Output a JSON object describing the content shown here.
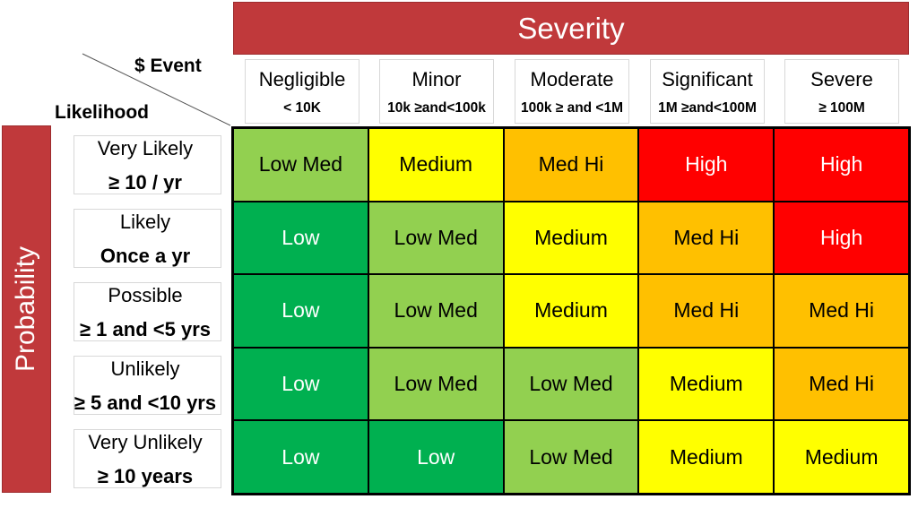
{
  "severity_title": "Severity",
  "probability_title": "Probability",
  "event_label": "$ Event",
  "likelihood_label": "Likelihood",
  "severity_levels": [
    {
      "name": "Negligible",
      "range": "< 10K"
    },
    {
      "name": "Minor",
      "range": "10k ≥and<100k"
    },
    {
      "name": "Moderate",
      "range": "100k ≥ and <1M"
    },
    {
      "name": "Significant",
      "range": "1M ≥and<100M"
    },
    {
      "name": "Severe",
      "range": "≥ 100M"
    }
  ],
  "likelihood_levels": [
    {
      "name": "Very Likely",
      "range": "≥ 10 / yr"
    },
    {
      "name": "Likely",
      "range": "Once a yr"
    },
    {
      "name": "Possible",
      "range": "≥ 1 and <5 yrs"
    },
    {
      "name": "Unlikely",
      "range": "≥ 5 and <10 yrs"
    },
    {
      "name": "Very Unlikely",
      "range": "≥ 10 years"
    }
  ],
  "matrix": [
    [
      "Low Med",
      "Medium",
      "Med Hi",
      "High",
      "High"
    ],
    [
      "Low",
      "Low Med",
      "Medium",
      "Med Hi",
      "High"
    ],
    [
      "Low",
      "Low Med",
      "Medium",
      "Med Hi",
      "Med Hi"
    ],
    [
      "Low",
      "Low Med",
      "Low Med",
      "Medium",
      "Med Hi"
    ],
    [
      "Low",
      "Low",
      "Low Med",
      "Medium",
      "Medium"
    ]
  ],
  "risk_colors": {
    "Low": "#00b050",
    "Low Med": "#92d050",
    "Medium": "#ffff00",
    "Med Hi": "#ffc000",
    "High": "#ff0000"
  }
}
